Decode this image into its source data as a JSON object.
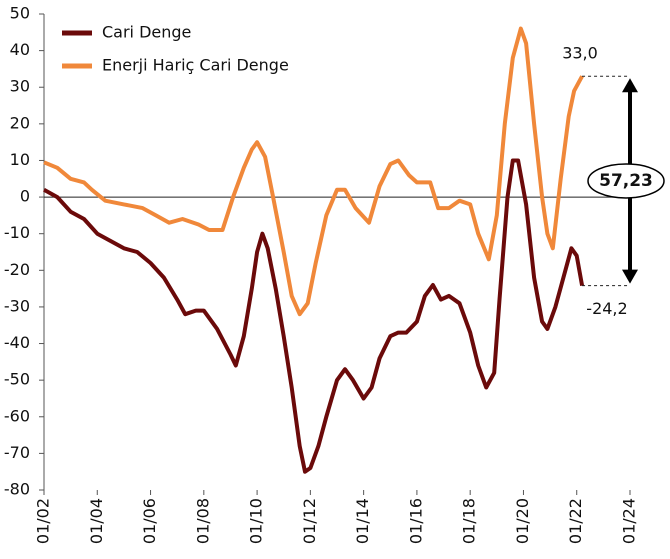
{
  "chart_data": {
    "type": "line",
    "legend": "upper left",
    "grid": false,
    "xlim": [
      2002,
      2024
    ],
    "xticks": [
      {
        "value": 2002,
        "label": "01/02"
      },
      {
        "value": 2004,
        "label": "01/04"
      },
      {
        "value": 2006,
        "label": "01/06"
      },
      {
        "value": 2008,
        "label": "01/08"
      },
      {
        "value": 2010,
        "label": "01/10"
      },
      {
        "value": 2012,
        "label": "01/12"
      },
      {
        "value": 2014,
        "label": "01/14"
      },
      {
        "value": 2016,
        "label": "01/16"
      },
      {
        "value": 2018,
        "label": "01/18"
      },
      {
        "value": 2020,
        "label": "01/20"
      },
      {
        "value": 2022,
        "label": "01/22"
      },
      {
        "value": 2024,
        "label": "01/24"
      }
    ],
    "ylim": [
      -80,
      50
    ],
    "yticks": [
      -80,
      -70,
      -60,
      -50,
      -40,
      -30,
      -20,
      -10,
      0,
      10,
      20,
      30,
      40,
      50
    ],
    "series": [
      {
        "name": "Cari Denge",
        "color": "#6b0a0a",
        "x": [
          2002.0,
          2002.5,
          2003.0,
          2003.5,
          2004.0,
          2004.5,
          2005.0,
          2005.5,
          2006.0,
          2006.5,
          2007.0,
          2007.3,
          2007.7,
          2008.0,
          2008.5,
          2009.0,
          2009.2,
          2009.5,
          2009.8,
          2010.0,
          2010.2,
          2010.4,
          2010.7,
          2011.0,
          2011.3,
          2011.6,
          2011.8,
          2012.0,
          2012.3,
          2012.6,
          2013.0,
          2013.3,
          2013.6,
          2014.0,
          2014.3,
          2014.6,
          2015.0,
          2015.3,
          2015.6,
          2016.0,
          2016.3,
          2016.6,
          2016.9,
          2017.2,
          2017.6,
          2018.0,
          2018.3,
          2018.6,
          2018.9,
          2019.1,
          2019.4,
          2019.6,
          2019.8,
          2020.1,
          2020.4,
          2020.7,
          2020.9,
          2021.2,
          2021.5,
          2021.8,
          2022.0,
          2022.2
        ],
        "values": [
          2,
          0,
          -4,
          -6,
          -10,
          -12,
          -14,
          -15,
          -18,
          -22,
          -28,
          -32,
          -31,
          -31,
          -36,
          -43,
          -46,
          -38,
          -25,
          -15,
          -10,
          -14,
          -25,
          -38,
          -52,
          -68,
          -75,
          -74,
          -68,
          -60,
          -50,
          -47,
          -50,
          -55,
          -52,
          -44,
          -38,
          -37,
          -37,
          -34,
          -27,
          -24,
          -28,
          -27,
          -29,
          -37,
          -46,
          -52,
          -48,
          -28,
          0,
          10,
          10,
          -2,
          -22,
          -34,
          -36,
          -30,
          -22,
          -14,
          -16,
          -24.2
        ]
      },
      {
        "name": "Enerji Hariç Cari Denge",
        "color": "#f0883a",
        "x": [
          2002.0,
          2002.5,
          2003.0,
          2003.5,
          2003.8,
          2004.3,
          2005.0,
          2005.7,
          2006.2,
          2006.7,
          2007.2,
          2007.8,
          2008.2,
          2008.7,
          2009.1,
          2009.5,
          2009.8,
          2010.0,
          2010.3,
          2010.6,
          2011.0,
          2011.3,
          2011.6,
          2011.9,
          2012.2,
          2012.6,
          2013.0,
          2013.3,
          2013.7,
          2014.2,
          2014.6,
          2015.0,
          2015.3,
          2015.7,
          2016.0,
          2016.5,
          2016.8,
          2017.2,
          2017.6,
          2018.0,
          2018.3,
          2018.7,
          2019.0,
          2019.3,
          2019.6,
          2019.9,
          2020.1,
          2020.4,
          2020.7,
          2020.9,
          2021.1,
          2021.4,
          2021.7,
          2021.9,
          2022.2
        ],
        "values": [
          9.5,
          8,
          5,
          4,
          2,
          -1,
          -2,
          -3,
          -5,
          -7,
          -6,
          -7.5,
          -9,
          -9,
          0,
          8,
          13,
          15,
          11,
          0,
          -15,
          -27,
          -32,
          -29,
          -18,
          -5,
          2,
          2,
          -3,
          -7,
          3,
          9,
          10,
          6,
          4,
          4,
          -3,
          -3,
          -1,
          -2,
          -10,
          -17,
          -5,
          20,
          38,
          46,
          42,
          20,
          0,
          -10,
          -14,
          5,
          22,
          29,
          33
        ]
      }
    ],
    "annotations": [
      {
        "text": "33,0",
        "y": 33
      },
      {
        "text": "-24,2",
        "y": -24.2
      },
      {
        "text": "57,23"
      }
    ]
  }
}
